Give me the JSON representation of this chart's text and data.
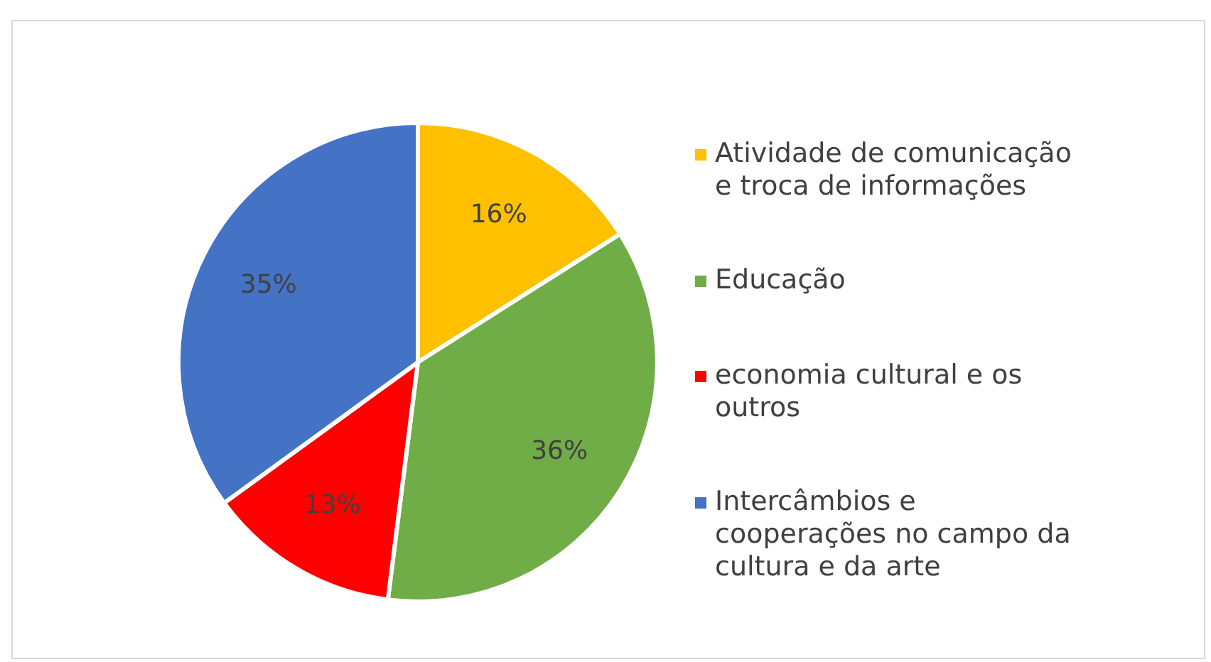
{
  "chart_data": {
    "type": "pie",
    "categories": [
      "Atividade de comunicação e troca de informações",
      "Educação",
      "economia cultural e os outros",
      "Intercâmbios e cooperações no campo da cultura e da arte"
    ],
    "values": [
      16,
      36,
      13,
      35
    ],
    "colors": [
      "#ffc000",
      "#70ad47",
      "#ff0000",
      "#4472c4"
    ],
    "value_labels": [
      "16%",
      "36%",
      "13%",
      "35%"
    ],
    "legend": "right"
  }
}
